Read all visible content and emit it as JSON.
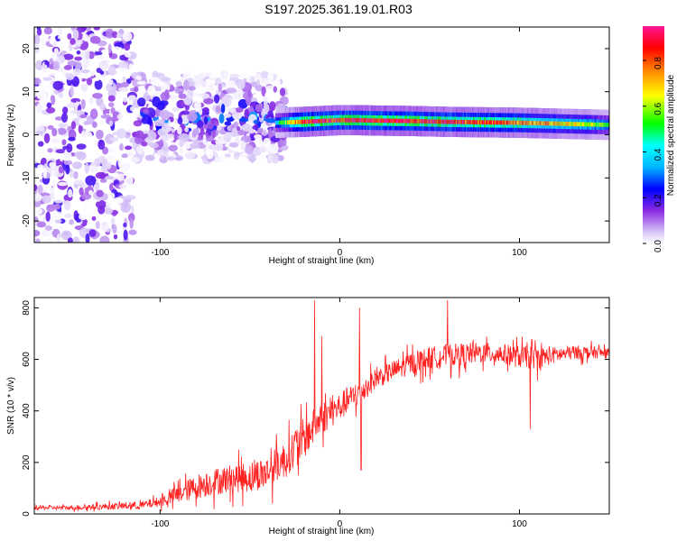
{
  "title": "S197.2025.361.19.01.R03",
  "colors": {
    "snr_line": "#ff2020",
    "axes": "#000000",
    "background": "#ffffff"
  },
  "chart_data": [
    {
      "type": "heatmap",
      "name": "spectrogram",
      "xlabel": "Height of straight line (km)",
      "ylabel": "Frequency (Hz)",
      "xlim": [
        -170,
        150
      ],
      "ylim": [
        -25,
        25
      ],
      "x_ticks": [
        -100,
        0,
        100
      ],
      "x_tick_labels": [
        "-100",
        "0",
        "100"
      ],
      "y_ticks": [
        20,
        10,
        0,
        -10,
        -20
      ],
      "y_tick_labels": [
        "20",
        "10",
        "0",
        "-10",
        "-20"
      ],
      "colorbar": {
        "label": "Normalized spectral amplitude",
        "range": [
          0.0,
          0.95
        ],
        "ticks": [
          0.0,
          0.2,
          0.4,
          0.6,
          0.8
        ],
        "tick_labels": [
          "0.0",
          "0.2",
          "0.4",
          "0.6",
          "0.8"
        ]
      },
      "ridge": {
        "x": [
          -35,
          -20,
          -10,
          0,
          10,
          20,
          40,
          60,
          80,
          100,
          120,
          140,
          150
        ],
        "freq": [
          2.8,
          3.0,
          3.2,
          3.4,
          3.4,
          3.3,
          3.2,
          3.0,
          2.9,
          2.8,
          2.6,
          2.4,
          2.3
        ],
        "amplitude": [
          0.4,
          0.85,
          0.9,
          0.85,
          0.9,
          0.9,
          0.88,
          0.85,
          0.82,
          0.8,
          0.7,
          0.6,
          0.5
        ]
      },
      "noise_regions": [
        {
          "x_range": [
            -170,
            -115
          ],
          "freq_range": [
            -25,
            25
          ],
          "amplitude_max": 0.2
        },
        {
          "x_range": [
            -115,
            -30
          ],
          "freq_range": [
            -6,
            14
          ],
          "amplitude_max": 0.35
        }
      ]
    },
    {
      "type": "line",
      "name": "snr",
      "xlabel": "Height of straight line (km)",
      "ylabel": "SNR (10 * v/v)",
      "xlim": [
        -170,
        150
      ],
      "ylim": [
        0,
        840
      ],
      "x_ticks": [
        -100,
        0,
        100
      ],
      "x_tick_labels": [
        "-100",
        "0",
        "100"
      ],
      "y_ticks": [
        0,
        200,
        400,
        600,
        800
      ],
      "y_tick_labels": [
        "0",
        "200",
        "400",
        "600",
        "800"
      ],
      "series": [
        {
          "name": "SNR",
          "x": [
            -170,
            -150,
            -130,
            -110,
            -100,
            -90,
            -80,
            -70,
            -60,
            -50,
            -40,
            -35,
            -30,
            -25,
            -20,
            -15,
            -10,
            -5,
            0,
            5,
            10,
            15,
            20,
            30,
            40,
            50,
            60,
            70,
            80,
            90,
            100,
            110,
            120,
            130,
            140,
            150
          ],
          "y": [
            25,
            25,
            30,
            35,
            50,
            80,
            110,
            130,
            145,
            150,
            170,
            200,
            220,
            270,
            300,
            340,
            380,
            400,
            420,
            450,
            470,
            500,
            530,
            560,
            590,
            610,
            620,
            625,
            630,
            625,
            615,
            610,
            620,
            630,
            630,
            625
          ],
          "spread": [
            20,
            20,
            30,
            40,
            50,
            90,
            120,
            130,
            140,
            150,
            160,
            170,
            180,
            190,
            200,
            180,
            160,
            150,
            140,
            130,
            120,
            110,
            100,
            100,
            110,
            110,
            110,
            110,
            100,
            100,
            110,
            110,
            80,
            70,
            60,
            50
          ],
          "spikes": [
            {
              "x": -14,
              "y": 830
            },
            {
              "x": -10,
              "y": 690
            },
            {
              "x": 11,
              "y": 800
            },
            {
              "x": 11.8,
              "y": 170
            },
            {
              "x": 60,
              "y": 830
            },
            {
              "x": 106,
              "y": 330
            }
          ]
        }
      ]
    }
  ]
}
